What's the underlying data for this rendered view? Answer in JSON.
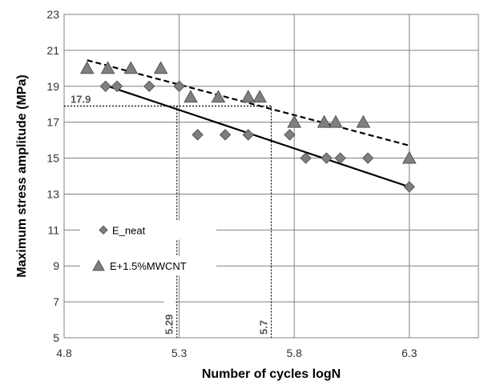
{
  "chart_data": {
    "type": "scatter",
    "xlabel": "Number of cycles logN",
    "ylabel": "Maximum stress amplitude (MPa)",
    "xlim": [
      4.8,
      6.6
    ],
    "ylim": [
      5,
      23
    ],
    "x_ticks": [
      "4.8",
      "5.3",
      "5.8",
      "6.3"
    ],
    "y_ticks": [
      "5",
      "7",
      "9",
      "11",
      "13",
      "15",
      "17",
      "19",
      "21",
      "23"
    ],
    "grid": true,
    "series": [
      {
        "name": "E_neat",
        "marker": "diamond",
        "color": "#7f7f7f",
        "x": [
          4.98,
          5.03,
          5.17,
          5.3,
          5.38,
          5.5,
          5.6,
          5.78,
          5.85,
          5.94,
          6.0,
          6.12,
          6.3
        ],
        "y": [
          19.0,
          19.0,
          19.0,
          19.0,
          16.3,
          16.3,
          16.3,
          16.3,
          15.0,
          15.0,
          15.0,
          15.0,
          13.4
        ],
        "trendline": {
          "x": [
            4.98,
            6.3
          ],
          "y": [
            19.05,
            13.4
          ],
          "style": "solid"
        }
      },
      {
        "name": "E+1.5%MWCNT",
        "marker": "triangle",
        "color": "#7f7f7f",
        "x": [
          4.9,
          4.99,
          5.09,
          5.22,
          5.35,
          5.47,
          5.6,
          5.65,
          5.8,
          5.93,
          5.98,
          6.1,
          6.3
        ],
        "y": [
          20.0,
          20.0,
          20.0,
          20.0,
          18.4,
          18.4,
          18.4,
          18.4,
          17.0,
          17.0,
          17.0,
          17.0,
          15.0
        ],
        "trendline": {
          "x": [
            4.9,
            6.3
          ],
          "y": [
            20.45,
            15.7
          ],
          "style": "dashed"
        }
      }
    ],
    "annotations": {
      "y_value": "17.9",
      "y_level": 17.9,
      "x_value_1": "5.29",
      "x_level_1": 5.29,
      "x_value_2": "5.7",
      "x_level_2": 5.7
    },
    "legend": {
      "placement": "inside-left"
    }
  }
}
